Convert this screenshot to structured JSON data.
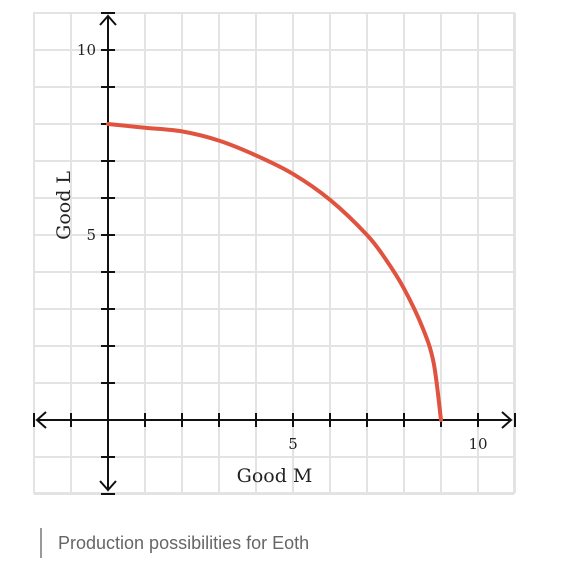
{
  "chart_data": {
    "type": "line",
    "title": "",
    "xlabel": "Good M",
    "ylabel": "Good L",
    "xlim": [
      -2,
      11
    ],
    "ylim": [
      -2,
      11
    ],
    "x_ticks": [
      5,
      10
    ],
    "y_ticks": [
      5,
      10
    ],
    "grid": true,
    "series": [
      {
        "color": "#e0533f",
        "x": [
          0,
          1,
          2,
          3,
          4,
          5,
          6,
          7,
          7.5,
          8,
          8.5,
          8.8,
          9
        ],
        "y": [
          8,
          7.9,
          7.8,
          7.55,
          7.15,
          6.65,
          5.95,
          5.0,
          4.35,
          3.55,
          2.5,
          1.55,
          0
        ]
      }
    ]
  },
  "caption": "Production possibilities for Eoth"
}
